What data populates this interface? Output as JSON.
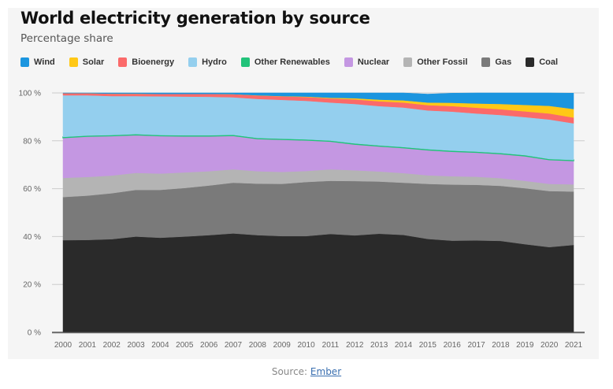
{
  "chart_data": {
    "type": "area",
    "stacked": true,
    "title": "World electricity generation by source",
    "subtitle": "Percentage share",
    "xlabel": "",
    "ylabel": "",
    "ylim": [
      0,
      100
    ],
    "y_ticks": [
      0,
      20,
      40,
      60,
      80,
      100
    ],
    "y_tick_suffix": " %",
    "grid": true,
    "legend_position": "top",
    "x": [
      2000,
      2001,
      2002,
      2003,
      2004,
      2005,
      2006,
      2007,
      2008,
      2009,
      2010,
      2011,
      2012,
      2013,
      2014,
      2015,
      2016,
      2017,
      2018,
      2019,
      2020,
      2021
    ],
    "series": [
      {
        "name": "Coal",
        "color": "#2a2a2a",
        "values": [
          38.5,
          38.6,
          38.9,
          40.0,
          39.5,
          40.0,
          40.6,
          41.3,
          40.6,
          40.2,
          40.2,
          41.1,
          40.5,
          41.2,
          40.7,
          39.0,
          38.3,
          38.4,
          38.2,
          36.8,
          35.6,
          36.5
        ]
      },
      {
        "name": "Gas",
        "color": "#7a7a7a",
        "values": [
          18.0,
          18.5,
          19.2,
          19.5,
          20.0,
          20.3,
          20.7,
          21.2,
          21.5,
          21.8,
          22.6,
          22.2,
          22.7,
          21.8,
          21.8,
          23.0,
          23.4,
          23.2,
          23.0,
          23.4,
          23.4,
          22.3
        ]
      },
      {
        "name": "Other Fossil",
        "color": "#b4b4b4",
        "values": [
          8.0,
          7.8,
          7.4,
          7.1,
          6.8,
          6.5,
          6.0,
          5.6,
          5.2,
          5.0,
          4.6,
          4.8,
          4.5,
          4.2,
          4.0,
          3.6,
          3.5,
          3.4,
          3.2,
          3.1,
          3.0,
          3.0
        ]
      },
      {
        "name": "Nuclear",
        "color": "#c497e2",
        "values": [
          16.8,
          17.0,
          16.6,
          15.9,
          15.8,
          15.2,
          14.7,
          14.1,
          13.6,
          13.6,
          12.9,
          11.7,
          10.9,
          10.6,
          10.6,
          10.6,
          10.4,
          10.2,
          10.2,
          10.4,
          10.1,
          9.9
        ]
      },
      {
        "name": "Other Renewables",
        "color": "#22c37a",
        "values": [
          0.3,
          0.3,
          0.3,
          0.3,
          0.3,
          0.3,
          0.3,
          0.3,
          0.3,
          0.3,
          0.3,
          0.3,
          0.3,
          0.3,
          0.3,
          0.3,
          0.3,
          0.3,
          0.3,
          0.3,
          0.3,
          0.3
        ]
      },
      {
        "name": "Hydro",
        "color": "#94cfee",
        "values": [
          17.4,
          16.8,
          16.3,
          15.9,
          16.2,
          16.2,
          16.1,
          15.7,
          16.3,
          16.2,
          16.1,
          15.9,
          16.5,
          16.4,
          16.5,
          16.2,
          16.3,
          15.9,
          15.9,
          15.9,
          16.5,
          15.3
        ]
      },
      {
        "name": "Bioenergy",
        "color": "#fb6a6a",
        "values": [
          0.9,
          0.9,
          1.0,
          1.0,
          1.0,
          1.1,
          1.2,
          1.3,
          1.4,
          1.5,
          1.6,
          1.7,
          1.9,
          2.0,
          2.1,
          2.2,
          2.3,
          2.4,
          2.4,
          2.4,
          2.5,
          2.4
        ]
      },
      {
        "name": "Solar",
        "color": "#ffc816",
        "values": [
          0.0,
          0.0,
          0.0,
          0.0,
          0.0,
          0.0,
          0.0,
          0.0,
          0.1,
          0.1,
          0.2,
          0.3,
          0.5,
          0.7,
          0.9,
          1.1,
          1.4,
          1.8,
          2.2,
          2.7,
          3.2,
          3.6
        ]
      },
      {
        "name": "Wind",
        "color": "#1b95df",
        "values": [
          0.2,
          0.2,
          0.3,
          0.3,
          0.4,
          0.5,
          0.6,
          0.8,
          1.0,
          1.4,
          1.6,
          2.0,
          2.3,
          2.8,
          3.1,
          3.5,
          4.0,
          4.4,
          4.8,
          5.3,
          5.9,
          6.6
        ]
      }
    ],
    "legend_order": [
      "Wind",
      "Solar",
      "Bioenergy",
      "Hydro",
      "Other Renewables",
      "Nuclear",
      "Other Fossil",
      "Gas",
      "Coal"
    ]
  },
  "source": {
    "prefix": "Source: ",
    "link_text": "Ember"
  },
  "colors": {
    "background": "#f5f5f5",
    "grid": "#cccccc",
    "axis": "#666666"
  }
}
